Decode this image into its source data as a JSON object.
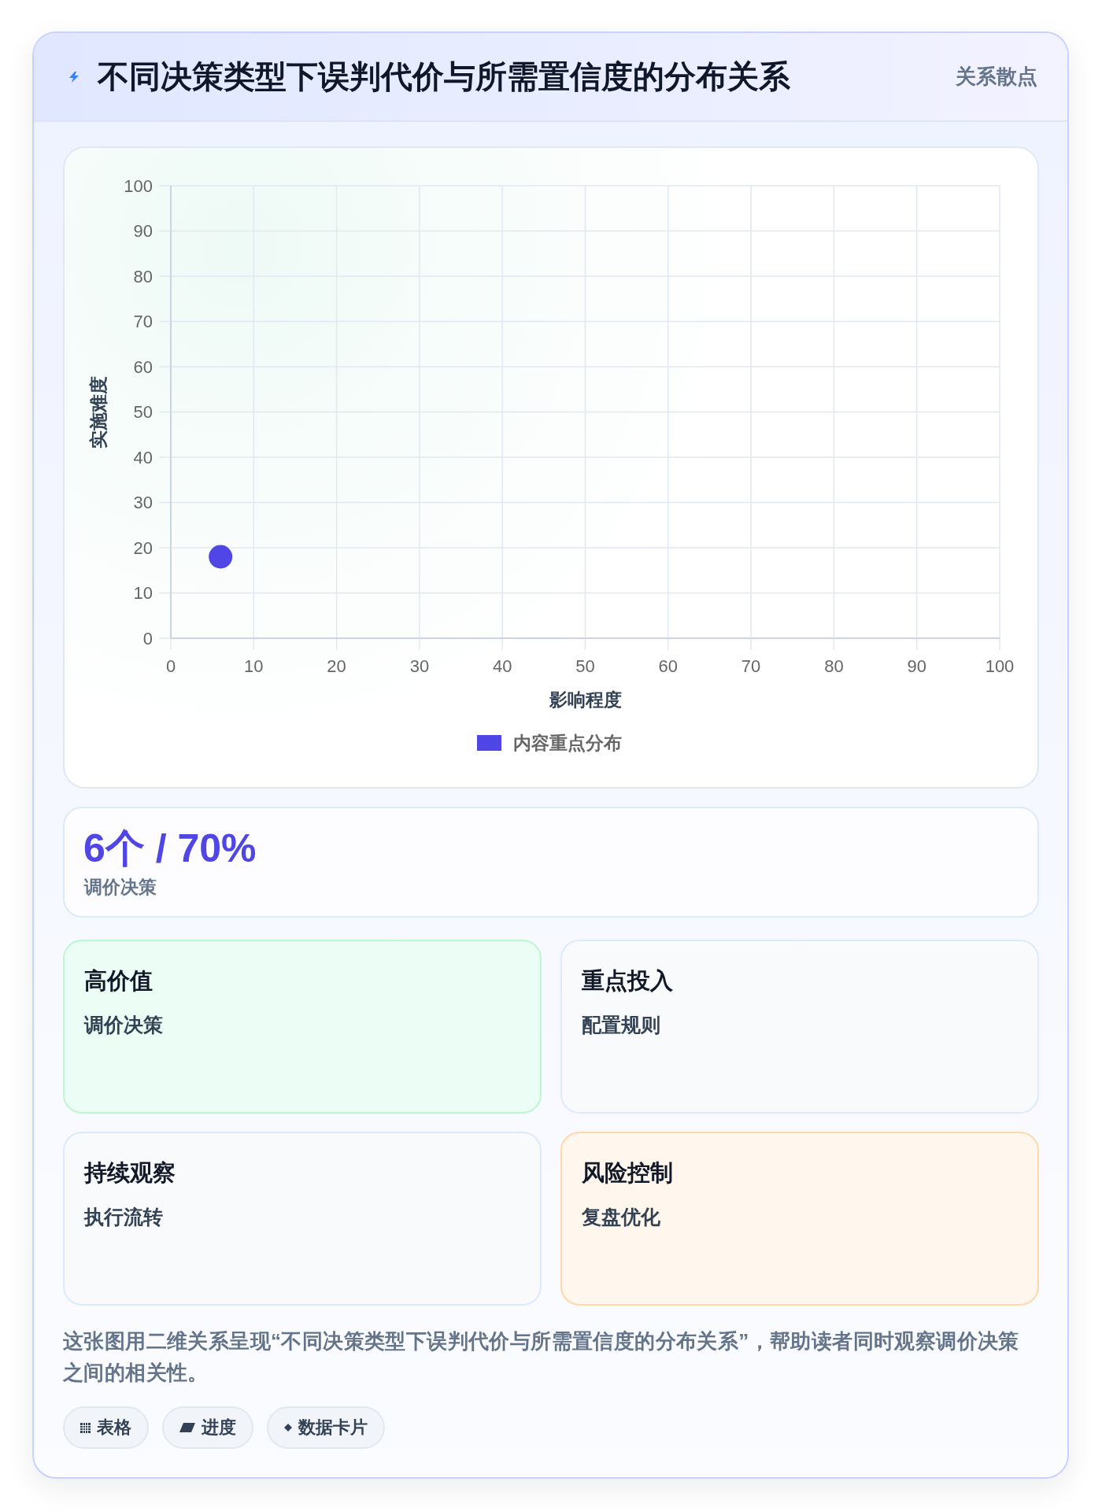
{
  "chart_data": {
    "type": "scatter",
    "title": "不同决策类型下误判代价与所需置信度的分布关系",
    "subtitle": "关系散点",
    "xlabel": "影响程度",
    "ylabel": "实施难度",
    "series": [
      {
        "name": "内容重点分布",
        "color": "#4f46e5",
        "x": [
          6
        ],
        "values": [
          18
        ]
      }
    ],
    "xlim": [
      0,
      100
    ],
    "ylim": [
      0,
      100
    ],
    "xticks": [
      0,
      10,
      20,
      30,
      40,
      50,
      60,
      70,
      80,
      90,
      100
    ],
    "yticks": [
      0,
      10,
      20,
      30,
      40,
      50,
      60,
      70,
      80,
      90,
      100
    ],
    "grid": true,
    "legend": "bottom",
    "marker": "circle",
    "annotations": [
      "6个 / 70%",
      "调价决策",
      "高价值",
      "调价决策",
      "重点投入",
      "配置规则",
      "持续观察",
      "执行流转",
      "风险控制",
      "复盘优化",
      "这张图用二维关系呈现“不同决策类型下误判代价与所需置信度的分布关系”，帮助读者同时观察调价决策之间的相关性。",
      "表格",
      "进度",
      "数据卡片"
    ]
  }
}
